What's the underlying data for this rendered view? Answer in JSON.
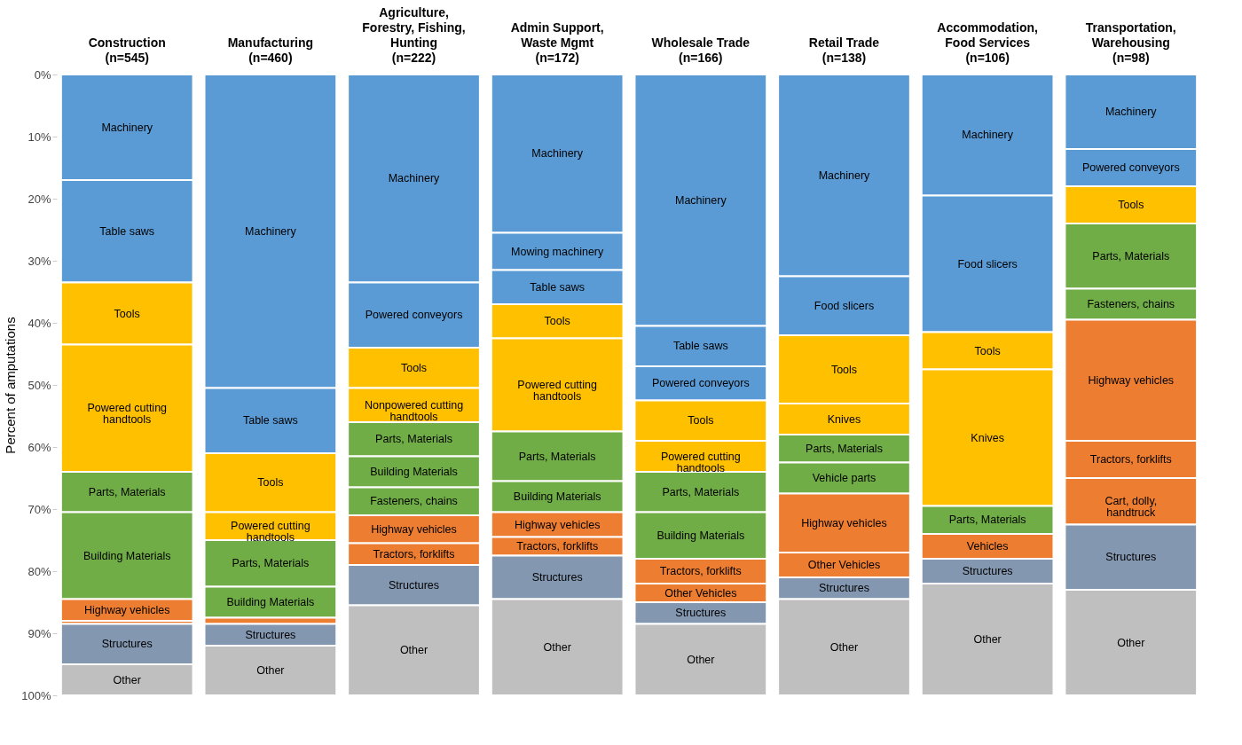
{
  "chart_data": {
    "type": "bar",
    "stacked": true,
    "ylabel": "Percent of amputations",
    "grid": false,
    "categories": [
      "Construction\n(n=545)",
      "Manufacturing\n(n=460)",
      "Agriculture,\nForestry, Fishing,\nHunting\n(n=222)",
      "Admin Support,\nWaste Mgmt\n(n=172)",
      "Wholesale Trade\n(n=166)",
      "Retail Trade\n(n=138)",
      "Accommodation,\nFood Services\n(n=106)",
      "Transportation,\nWarehousing\n(n=98)"
    ],
    "ylim": [
      100,
      0
    ],
    "yticks": [
      {
        "value": 0,
        "label": "0%"
      },
      {
        "value": 10,
        "label": "10%"
      },
      {
        "value": 20,
        "label": "20%"
      },
      {
        "value": 30,
        "label": "30%"
      },
      {
        "value": 40,
        "label": "40%"
      },
      {
        "value": 50,
        "label": "50%"
      },
      {
        "value": 60,
        "label": "60%"
      },
      {
        "value": 70,
        "label": "70%"
      },
      {
        "value": 80,
        "label": "80%"
      },
      {
        "value": 90,
        "label": "90%"
      },
      {
        "value": 100,
        "label": "100%"
      }
    ],
    "series": [
      {
        "name": "Machinery",
        "color": "#5b9bd5",
        "values": [
          17,
          50.5,
          33.5,
          25.5,
          40.5,
          32.5,
          19.5,
          12
        ]
      },
      {
        "name": "Mowing machinery",
        "color": "#5b9bd5",
        "values": [
          null,
          null,
          null,
          6,
          null,
          null,
          null,
          null
        ]
      },
      {
        "name": "Food slicers",
        "color": "#5b9bd5",
        "values": [
          null,
          null,
          null,
          null,
          null,
          9.5,
          22,
          null
        ]
      },
      {
        "name": "Table saws",
        "color": "#5b9bd5",
        "values": [
          16.5,
          10.5,
          null,
          5.5,
          6.5,
          null,
          null,
          null
        ]
      },
      {
        "name": "Powered conveyors",
        "color": "#5b9bd5",
        "values": [
          null,
          null,
          10.5,
          null,
          5.5,
          null,
          null,
          6
        ]
      },
      {
        "name": "Tools",
        "color": "#ffc000",
        "values": [
          10,
          9.5,
          6.5,
          5.5,
          6.5,
          11,
          6,
          6
        ]
      },
      {
        "name": "Powered cutting handtools",
        "color": "#ffc000",
        "values": [
          20.5,
          4.5,
          null,
          15,
          5,
          null,
          null,
          null
        ]
      },
      {
        "name": "Nonpowered cutting handtools",
        "color": "#ffc000",
        "values": [
          null,
          null,
          5.5,
          null,
          null,
          null,
          null,
          null
        ]
      },
      {
        "name": "Knives",
        "color": "#ffc000",
        "values": [
          null,
          null,
          null,
          null,
          null,
          5,
          22,
          null
        ]
      },
      {
        "name": "Parts, Materials",
        "color": "#70ad47",
        "values": [
          6.5,
          7.5,
          5.5,
          8,
          6.5,
          4.5,
          4.5,
          10.5
        ]
      },
      {
        "name": "Vehicle parts",
        "color": "#70ad47",
        "values": [
          null,
          null,
          null,
          null,
          null,
          5,
          null,
          null
        ]
      },
      {
        "name": "Building Materials",
        "color": "#70ad47",
        "values": [
          14,
          5,
          5,
          5,
          7.5,
          null,
          null,
          null
        ]
      },
      {
        "name": "Fasteners, chains",
        "color": "#70ad47",
        "values": [
          null,
          null,
          4.5,
          null,
          null,
          null,
          null,
          5
        ]
      },
      {
        "name": "Highway vehicles",
        "color": "#ed7d31",
        "values": [
          3.5,
          null,
          4.5,
          4,
          null,
          9.5,
          null,
          19.5
        ]
      },
      {
        "name": "Vehicles",
        "color": "#ed7d31",
        "values": [
          null,
          null,
          null,
          null,
          null,
          null,
          4,
          null
        ]
      },
      {
        "name": "Tractors, forklifts",
        "color": "#ed7d31",
        "values": [
          null,
          null,
          3.5,
          3,
          4,
          null,
          null,
          6
        ]
      },
      {
        "name": "Other Vehicles",
        "color": "#ed7d31",
        "values": [
          null,
          null,
          null,
          null,
          3,
          4,
          null,
          null
        ]
      },
      {
        "name": "Cart, dolly, handtruck",
        "color": "#ed7d31",
        "values": [
          null,
          null,
          null,
          null,
          null,
          null,
          null,
          7.5
        ]
      },
      {
        "color": "#ed7d31",
        "values": [
          0.5,
          1,
          null,
          null,
          null,
          null,
          null,
          null
        ]
      },
      {
        "name": "Structures",
        "color": "#8497b0",
        "values": [
          6.5,
          3.5,
          6.5,
          7,
          3.5,
          3.5,
          4,
          10.5
        ]
      },
      {
        "name": "Other",
        "color": "#bfbfbf",
        "values": [
          5,
          8,
          14.5,
          15.5,
          11.5,
          15.5,
          18,
          17
        ]
      }
    ]
  }
}
